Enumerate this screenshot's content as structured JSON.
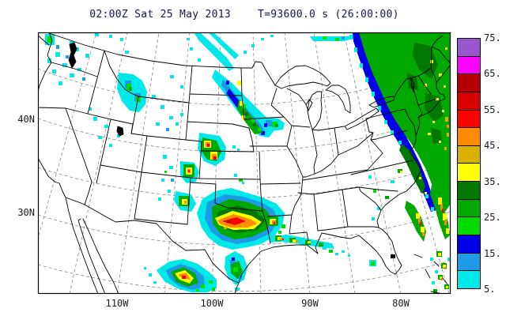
{
  "title": {
    "left": "02:00Z Sat 25 May 2013",
    "right": "T=93600.0 s (26:00:00)"
  },
  "axes": {
    "lat": [
      "40N",
      "30N"
    ],
    "lon": [
      "110W",
      "100W",
      "90W",
      "80W"
    ]
  },
  "colorbar": {
    "tick_labels": [
      "75.",
      "65.",
      "55.",
      "45.",
      "35.",
      "25.",
      "15.",
      "5."
    ],
    "cells_top_to_bottom": [
      "#9955CC",
      "#FF00FF",
      "#B40000",
      "#D80000",
      "#FF0000",
      "#FF8C00",
      "#D8B000",
      "#FFFF00",
      "#007800",
      "#00A800",
      "#00DC00",
      "#0000E8",
      "#1E9AE6",
      "#00E8E8"
    ]
  },
  "chart_data": {
    "type": "heatmap",
    "title": "02:00Z Sat 25 May 2013  T=93600.0 s (26:00:00)",
    "legend_values": [
      5,
      15,
      25,
      35,
      45,
      55,
      65,
      75
    ],
    "legend_step": 5,
    "lat_ticks": [
      "40N",
      "30N"
    ],
    "lon_ticks": [
      "110W",
      "100W",
      "90W",
      "80W"
    ],
    "legend_position": "right"
  }
}
